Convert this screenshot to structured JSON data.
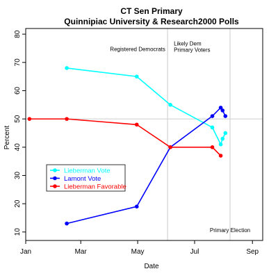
{
  "chart_data": {
    "type": "line",
    "title": "CT Sen Primary",
    "subtitle": "Quinnipiac University & Research2000 Polls",
    "xlabel": "Date",
    "ylabel": "Percent",
    "xlim": [
      "2006-01-01",
      "2006-09-12"
    ],
    "ylim": [
      7,
      82
    ],
    "x_ticks": [
      {
        "date": "2006-01-01",
        "label": "Jan"
      },
      {
        "date": "2006-03-01",
        "label": "Mar"
      },
      {
        "date": "2006-05-01",
        "label": "May"
      },
      {
        "date": "2006-07-01",
        "label": "Jul"
      },
      {
        "date": "2006-09-01",
        "label": "Sep"
      }
    ],
    "y_ticks": [
      10,
      20,
      30,
      40,
      50,
      60,
      70,
      80
    ],
    "grid": false,
    "legend_position": "left",
    "reference_lines": [
      {
        "orientation": "vertical",
        "date": "2006-06-02"
      },
      {
        "orientation": "vertical",
        "date": "2006-08-08"
      },
      {
        "orientation": "horizontal",
        "value": 50
      }
    ],
    "annotations": [
      {
        "text": [
          "Registered Democrats"
        ],
        "date": "2006-05-01",
        "y": 74
      },
      {
        "text": [
          "Likely Dem",
          "Primary Voters"
        ],
        "date": "2006-06-05",
        "y": 76
      },
      {
        "text": [
          "Primary Election"
        ],
        "date": "2006-08-08",
        "y": 10
      }
    ],
    "series": [
      {
        "name": "Lieberman Vote",
        "color": "#00ffff",
        "points": [
          {
            "date": "2006-02-14",
            "y": 68
          },
          {
            "date": "2006-04-30",
            "y": 65
          },
          {
            "date": "2006-06-05",
            "y": 55
          },
          {
            "date": "2006-07-20",
            "y": 47
          },
          {
            "date": "2006-07-29",
            "y": 41
          },
          {
            "date": "2006-07-31",
            "y": 43
          },
          {
            "date": "2006-08-03",
            "y": 45
          }
        ]
      },
      {
        "name": "Lamont Vote",
        "color": "#0000ff",
        "points": [
          {
            "date": "2006-02-14",
            "y": 13
          },
          {
            "date": "2006-04-30",
            "y": 19
          },
          {
            "date": "2006-06-05",
            "y": 40
          },
          {
            "date": "2006-07-20",
            "y": 51
          },
          {
            "date": "2006-07-29",
            "y": 54
          },
          {
            "date": "2006-07-31",
            "y": 53
          },
          {
            "date": "2006-08-03",
            "y": 51
          }
        ]
      },
      {
        "name": "Lieberman Favorable",
        "color": "#ff0000",
        "points": [
          {
            "date": "2006-01-05",
            "y": 50
          },
          {
            "date": "2006-02-14",
            "y": 50
          },
          {
            "date": "2006-04-30",
            "y": 48
          },
          {
            "date": "2006-06-05",
            "y": 40
          },
          {
            "date": "2006-07-20",
            "y": 40
          },
          {
            "date": "2006-07-29",
            "y": 37
          }
        ]
      }
    ]
  }
}
